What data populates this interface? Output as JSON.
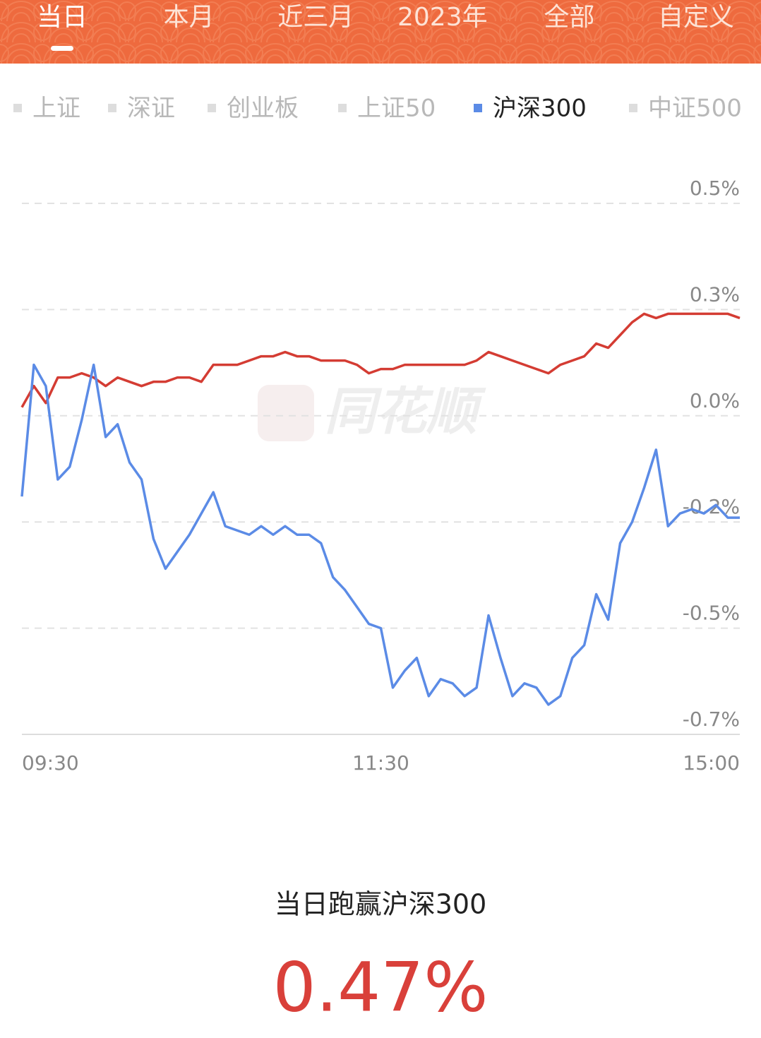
{
  "tabs": [
    "当日",
    "本月",
    "近三月",
    "2023年",
    "全部",
    "自定义"
  ],
  "selected_tab": 0,
  "index_tabs": [
    "上证",
    "深证",
    "创业板",
    "上证50",
    "沪深300",
    "中证500"
  ],
  "selected_index": 4,
  "chart_data": {
    "type": "line",
    "watermark": "同花顺",
    "x": [
      0,
      4,
      8,
      12,
      16,
      20,
      24,
      28,
      32,
      36,
      40,
      44,
      48,
      52,
      56,
      60,
      64,
      68,
      72,
      76,
      80,
      84,
      88,
      92,
      96,
      100,
      104,
      108,
      112,
      116,
      120,
      124,
      128,
      132,
      136,
      140,
      144,
      148,
      152,
      156,
      160,
      164,
      168,
      172,
      176,
      180,
      184,
      188,
      192,
      196,
      200,
      204,
      208,
      212,
      216,
      220,
      224,
      228,
      232,
      236,
      240
    ],
    "xlim": [
      0,
      240
    ],
    "xticks": [
      {
        "value": 0,
        "label": "09:30"
      },
      {
        "value": 120,
        "label": "11:30"
      },
      {
        "value": 240,
        "label": "15:00"
      }
    ],
    "ylim": [
      -0.75,
      0.5
    ],
    "yticks": [
      {
        "value": 0.5,
        "label": "0.5%"
      },
      {
        "value": 0.25,
        "label": "0.3%"
      },
      {
        "value": 0,
        "label": "0.0%"
      },
      {
        "value": -0.25,
        "label": "-0.2%"
      },
      {
        "value": -0.5,
        "label": "-0.5%"
      },
      {
        "value": -0.75,
        "label": "-0.7%"
      }
    ],
    "grid": true,
    "series": [
      {
        "color": "#d43c33",
        "values": [
          0.02,
          0.07,
          0.03,
          0.09,
          0.09,
          0.1,
          0.09,
          0.07,
          0.09,
          0.08,
          0.07,
          0.08,
          0.08,
          0.09,
          0.09,
          0.08,
          0.12,
          0.12,
          0.12,
          0.13,
          0.14,
          0.14,
          0.15,
          0.14,
          0.14,
          0.13,
          0.13,
          0.13,
          0.12,
          0.1,
          0.11,
          0.11,
          0.12,
          0.12,
          0.12,
          0.12,
          0.12,
          0.12,
          0.13,
          0.15,
          0.14,
          0.13,
          0.12,
          0.11,
          0.1,
          0.12,
          0.13,
          0.14,
          0.17,
          0.16,
          0.19,
          0.22,
          0.24,
          0.23,
          0.24,
          0.24,
          0.24,
          0.24,
          0.24,
          0.24,
          0.23
        ]
      },
      {
        "color": "#5b8be6",
        "values": [
          -0.19,
          0.12,
          0.07,
          -0.15,
          -0.12,
          -0.01,
          0.12,
          -0.05,
          -0.02,
          -0.11,
          -0.15,
          -0.29,
          -0.36,
          -0.32,
          -0.28,
          -0.23,
          -0.18,
          -0.26,
          -0.27,
          -0.28,
          -0.26,
          -0.28,
          -0.26,
          -0.28,
          -0.28,
          -0.3,
          -0.38,
          -0.41,
          -0.45,
          -0.49,
          -0.5,
          -0.64,
          -0.6,
          -0.57,
          -0.66,
          -0.62,
          -0.63,
          -0.66,
          -0.64,
          -0.47,
          -0.57,
          -0.66,
          -0.63,
          -0.64,
          -0.68,
          -0.66,
          -0.57,
          -0.54,
          -0.42,
          -0.48,
          -0.3,
          -0.25,
          -0.17,
          -0.08,
          -0.26,
          -0.23,
          -0.22,
          -0.23,
          -0.21,
          -0.24,
          -0.24
        ]
      }
    ]
  },
  "summary": {
    "label": "当日跑赢沪深300",
    "value": "0.47%"
  }
}
